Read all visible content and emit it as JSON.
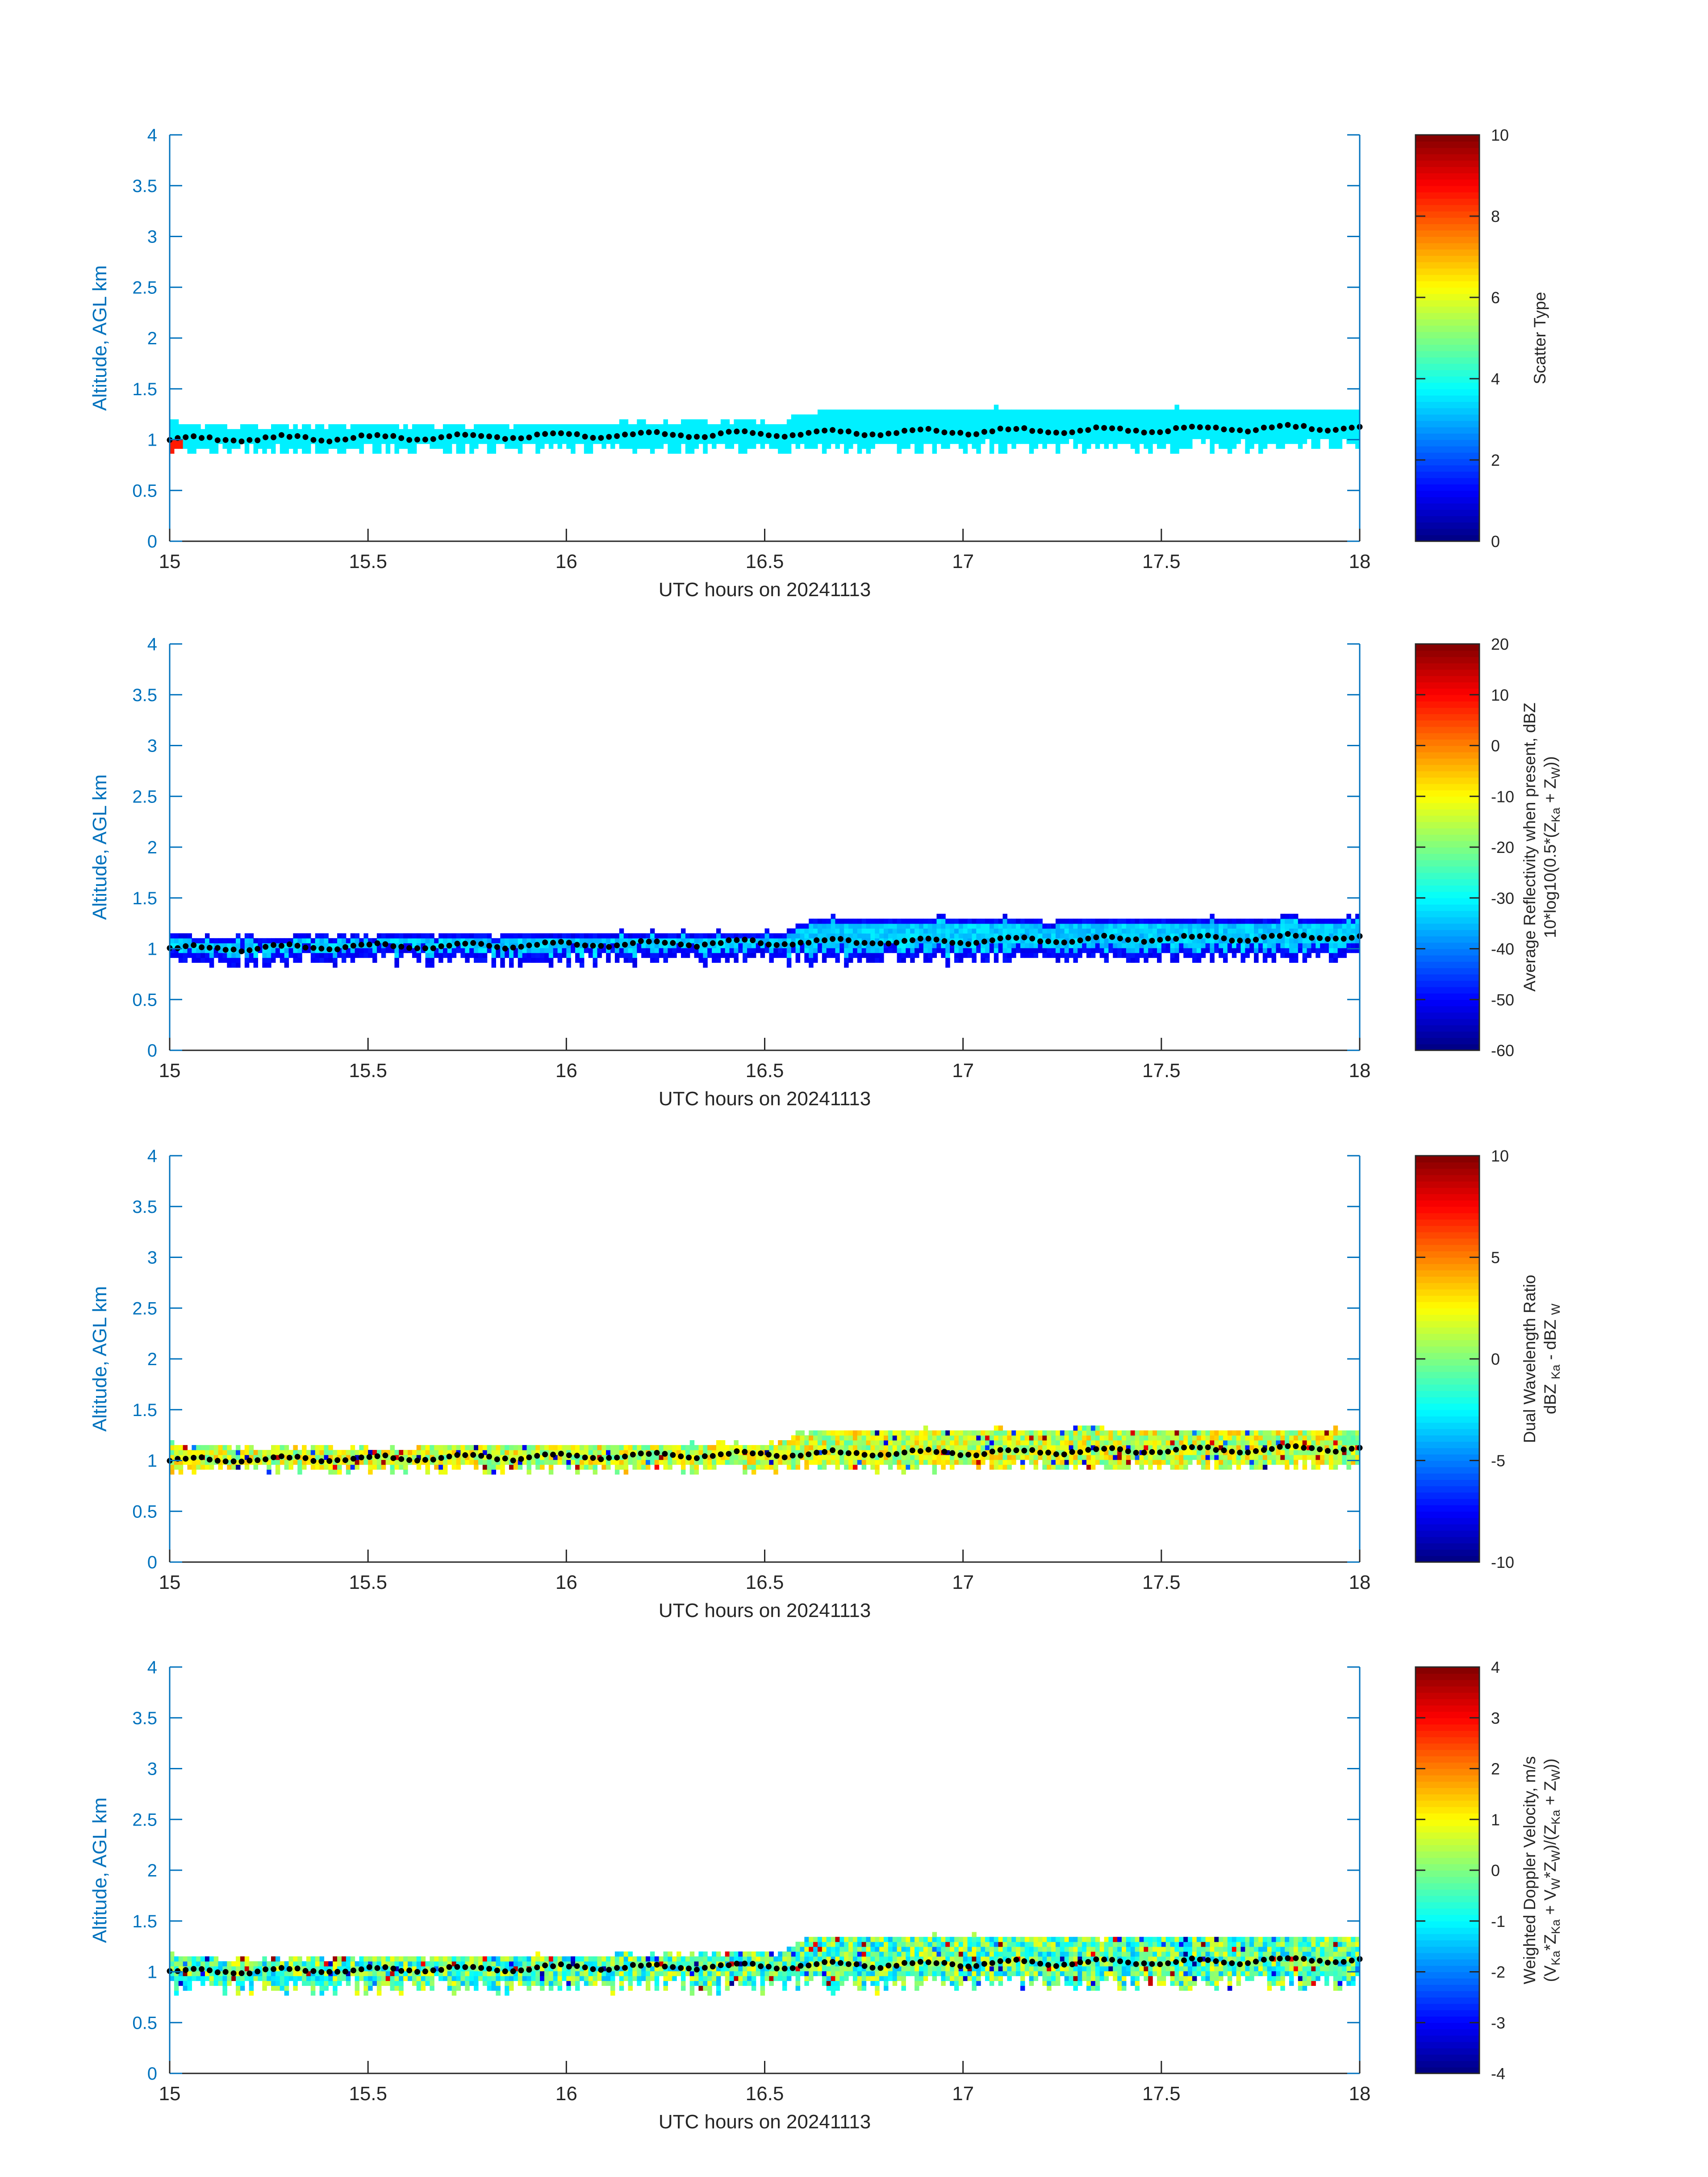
{
  "figure": {
    "xlabel": "UTC hours on 20241113",
    "ylabel": "Altitude, AGL km",
    "colormap": "jet",
    "axis_color": "#0072BD",
    "text_color": "#262626",
    "marker_color": "#000000"
  },
  "chart_data": [
    {
      "type": "heatmap",
      "title": "",
      "xlabel": "UTC hours on 20241113",
      "ylabel": "Altitude, AGL km",
      "xlim": [
        15,
        18
      ],
      "ylim": [
        0,
        4
      ],
      "xticks": [
        "15",
        "15.5",
        "16",
        "16.5",
        "17",
        "17.5",
        "18"
      ],
      "yticks": [
        "0",
        "0.5",
        "1",
        "1.5",
        "2",
        "2.5",
        "3",
        "3.5",
        "4"
      ],
      "colorbar": {
        "label_lines": [
          [
            {
              "t": "Scatter Type"
            }
          ]
        ],
        "range": [
          0,
          10
        ],
        "ticks": [
          "0",
          "2",
          "4",
          "6",
          "8",
          "10"
        ]
      },
      "layer": {
        "x_range": [
          15.0,
          18.0
        ],
        "bottom_km": [
          0.83,
          0.97
        ],
        "top_km": [
          1.12,
          1.3
        ],
        "value": 3.6,
        "spread": 0.0,
        "note_value": "uniform scatter type near 3.6 (cyan); a small 8.5 (red) patch at the start"
      },
      "marker_series": {
        "name": "",
        "x_range": [
          15.0,
          18.0
        ],
        "y_start_km": 1.0,
        "y_end_km": 1.12
      }
    },
    {
      "type": "heatmap",
      "title": "",
      "xlabel": "UTC hours on 20241113",
      "ylabel": "Altitude, AGL km",
      "xlim": [
        15,
        18
      ],
      "ylim": [
        0,
        4
      ],
      "xticks": [
        "15",
        "15.5",
        "16",
        "16.5",
        "17",
        "17.5",
        "18"
      ],
      "yticks": [
        "0",
        "0.5",
        "1",
        "1.5",
        "2",
        "2.5",
        "3",
        "3.5",
        "4"
      ],
      "colorbar": {
        "label_lines": [
          [
            {
              "t": "Average Reflectivity when present, dBZ"
            }
          ],
          [
            {
              "t": "10*log10(0.5*(Z"
            },
            {
              "t": "Ka",
              "sub": true
            },
            {
              "t": " + Z"
            },
            {
              "t": "W",
              "sub": true
            },
            {
              "t": "))"
            }
          ]
        ],
        "range": [
          -60,
          20
        ],
        "ticks": [
          "-60",
          "-50",
          "-40",
          "-30",
          "-20",
          "-10",
          "0",
          "10",
          "20"
        ]
      },
      "layer": {
        "x_range": [
          15.0,
          18.0
        ],
        "bottom_km": [
          0.8,
          0.95
        ],
        "top_km": [
          1.12,
          1.3
        ],
        "value_edge": -52,
        "value_core": -34
      },
      "marker_series": {
        "name": "",
        "x_range": [
          15.0,
          18.0
        ],
        "y_start_km": 1.0,
        "y_end_km": 1.12
      }
    },
    {
      "type": "heatmap",
      "title": "",
      "xlabel": "UTC hours on 20241113",
      "ylabel": "Altitude, AGL km",
      "xlim": [
        15,
        18
      ],
      "ylim": [
        0,
        4
      ],
      "xticks": [
        "15",
        "15.5",
        "16",
        "16.5",
        "17",
        "17.5",
        "18"
      ],
      "yticks": [
        "0",
        "0.5",
        "1",
        "1.5",
        "2",
        "2.5",
        "3",
        "3.5",
        "4"
      ],
      "colorbar": {
        "label_lines": [
          [
            {
              "t": "Dual Wavelength Ratio"
            }
          ],
          [
            {
              "t": "dBZ "
            },
            {
              "t": "Ka",
              "sub": true
            },
            {
              "t": " - dBZ "
            },
            {
              "t": "W",
              "sub": true
            }
          ]
        ],
        "range": [
          -10,
          10
        ],
        "ticks": [
          "-10",
          "-5",
          "0",
          "5",
          "10"
        ]
      },
      "layer": {
        "x_range": [
          15.0,
          18.0
        ],
        "bottom_km": [
          0.85,
          0.97
        ],
        "top_km": [
          1.12,
          1.3
        ],
        "value_mean": 1.5,
        "value_spread": 2.5
      },
      "marker_series": {
        "name": "",
        "x_range": [
          15.0,
          18.0
        ],
        "y_start_km": 1.0,
        "y_end_km": 1.12
      }
    },
    {
      "type": "heatmap",
      "title": "",
      "xlabel": "UTC hours on 20241113",
      "ylabel": "Altitude, AGL km",
      "xlim": [
        15,
        18
      ],
      "ylim": [
        0,
        4
      ],
      "xticks": [
        "15",
        "15.5",
        "16",
        "16.5",
        "17",
        "17.5",
        "18"
      ],
      "yticks": [
        "0",
        "0.5",
        "1",
        "1.5",
        "2",
        "2.5",
        "3",
        "3.5",
        "4"
      ],
      "colorbar": {
        "label_lines": [
          [
            {
              "t": "Weighted Doppler Velocity, m/s"
            }
          ],
          [
            {
              "t": "(V"
            },
            {
              "t": "Ka",
              "sub": true
            },
            {
              "t": "*Z"
            },
            {
              "t": "Ka",
              "sub": true
            },
            {
              "t": " + V"
            },
            {
              "t": "W",
              "sub": true
            },
            {
              "t": "*Z"
            },
            {
              "t": "W",
              "sub": true
            },
            {
              "t": ")/(Z"
            },
            {
              "t": "Ka",
              "sub": true
            },
            {
              "t": " + Z"
            },
            {
              "t": "W",
              "sub": true
            },
            {
              "t": "))"
            }
          ]
        ],
        "range": [
          -4,
          4
        ],
        "ticks": [
          "-4",
          "-3",
          "-2",
          "-1",
          "0",
          "1",
          "2",
          "3",
          "4"
        ]
      },
      "layer": {
        "x_range": [
          15.0,
          18.0
        ],
        "bottom_km": [
          0.75,
          0.95
        ],
        "top_km": [
          1.12,
          1.35
        ],
        "value_mean": -0.3,
        "value_spread": 1.3
      },
      "marker_series": {
        "name": "",
        "x_range": [
          15.0,
          18.0
        ],
        "y_start_km": 1.0,
        "y_end_km": 1.12
      }
    }
  ]
}
